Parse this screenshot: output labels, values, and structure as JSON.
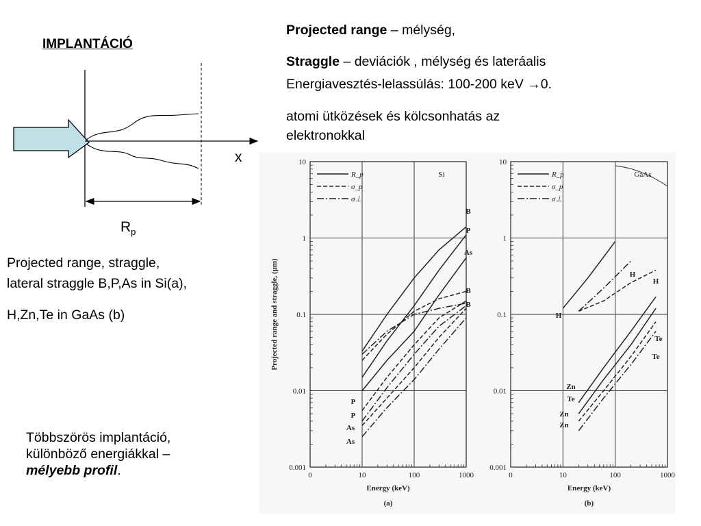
{
  "title": "IMPLANTÁCIÓ",
  "diagram": {
    "x_label": "x",
    "rp_label": "R",
    "rp_sub": "p"
  },
  "right_text": {
    "line1_bold": "Projected range",
    "line1_rest": " – mélység,",
    "line2_bold": "Straggle",
    "line2_rest": " – deviációk , mélység és lateráalis",
    "line3": "Energiavesztés-lelassúlás: 100-200 keV →0.",
    "line4a": "atomi ütközések és kölcsonhatás az",
    "line4b": "elektronokkal"
  },
  "left_text": {
    "line1": "Projected range, straggle,",
    "line2": "lateral straggle B,P,As in Si(a),",
    "line3": "H,Zn,Te in GaAs (b)"
  },
  "multi_text": {
    "line1": "Többszörös implantáció,",
    "line2": "különböző energiákkal –",
    "emph": "mélyebb profil",
    "end": "."
  },
  "chart_data": [
    {
      "type": "line",
      "panel_label": "(a)",
      "material": "Si",
      "xlabel": "Energy (keV)",
      "ylabel": "Projected range and straggle, (μm)",
      "x_scale": "log",
      "y_scale": "log",
      "xlim": [
        1,
        1000
      ],
      "ylim": [
        0.001,
        10
      ],
      "x_ticks": [
        "0",
        "10",
        "100",
        "1000"
      ],
      "y_ticks": [
        "0.001",
        "0.01",
        "0.1",
        "1",
        "10"
      ],
      "legend": [
        "R_p",
        "σ_p",
        "σ⊥"
      ],
      "legend_position": "top-left",
      "grid": true,
      "series": [
        {
          "name": "B",
          "kind": "Rp",
          "x": [
            10,
            30,
            100,
            300,
            1000
          ],
          "y": [
            0.033,
            0.1,
            0.3,
            0.7,
            1.4
          ]
        },
        {
          "name": "P",
          "kind": "Rp",
          "x": [
            10,
            30,
            100,
            300,
            1000
          ],
          "y": [
            0.015,
            0.045,
            0.13,
            0.38,
            1.1
          ]
        },
        {
          "name": "As",
          "kind": "Rp",
          "x": [
            10,
            30,
            100,
            300,
            1000
          ],
          "y": [
            0.01,
            0.025,
            0.06,
            0.18,
            0.55
          ]
        },
        {
          "name": "B",
          "kind": "σp",
          "x": [
            10,
            30,
            100,
            300,
            1000
          ],
          "y": [
            0.025,
            0.055,
            0.11,
            0.16,
            0.2
          ]
        },
        {
          "name": "B",
          "kind": "σ⊥",
          "x": [
            10,
            30,
            100,
            300,
            1000
          ],
          "y": [
            0.03,
            0.06,
            0.1,
            0.12,
            0.14
          ]
        },
        {
          "name": "P",
          "kind": "σp",
          "x": [
            10,
            30,
            100,
            300,
            1000
          ],
          "y": [
            0.0055,
            0.015,
            0.04,
            0.09,
            0.15
          ]
        },
        {
          "name": "P",
          "kind": "σ⊥",
          "x": [
            10,
            30,
            100,
            300,
            1000
          ],
          "y": [
            0.004,
            0.011,
            0.03,
            0.07,
            0.13
          ]
        },
        {
          "name": "As",
          "kind": "σp",
          "x": [
            10,
            30,
            100,
            300,
            1000
          ],
          "y": [
            0.0035,
            0.008,
            0.02,
            0.05,
            0.12
          ]
        },
        {
          "name": "As",
          "kind": "σ⊥",
          "x": [
            10,
            30,
            100,
            300,
            1000
          ],
          "y": [
            0.0025,
            0.006,
            0.014,
            0.035,
            0.09
          ]
        }
      ],
      "annotations": [
        "B",
        "P",
        "As",
        "B",
        "B",
        "P",
        "P",
        "As",
        "As"
      ]
    },
    {
      "type": "line",
      "panel_label": "(b)",
      "material": "GaAs",
      "xlabel": "Energy (keV)",
      "x_scale": "log",
      "y_scale": "log",
      "xlim": [
        1,
        1000
      ],
      "ylim": [
        0.001,
        10
      ],
      "x_ticks": [
        "0",
        "10",
        "100",
        "1000"
      ],
      "y_ticks": [
        "0.001",
        "0.01",
        "0.1",
        "1",
        "10"
      ],
      "legend": [
        "R_p",
        "σ_p",
        "σ⊥"
      ],
      "legend_position": "top-left",
      "grid": true,
      "series": [
        {
          "name": "H",
          "kind": "Rp",
          "x": [
            10,
            30,
            100
          ],
          "y": [
            0.12,
            0.3,
            0.9
          ]
        },
        {
          "name": "H",
          "kind": "σ⊥",
          "x": [
            20,
            60,
            200
          ],
          "y": [
            0.11,
            0.22,
            0.5
          ]
        },
        {
          "name": "H",
          "kind": "σp",
          "x": [
            20,
            60,
            200,
            600
          ],
          "y": [
            0.11,
            0.15,
            0.26,
            0.38
          ]
        },
        {
          "name": "Zn",
          "kind": "Rp",
          "x": [
            20,
            60,
            200,
            600
          ],
          "y": [
            0.007,
            0.02,
            0.06,
            0.17
          ]
        },
        {
          "name": "Te",
          "kind": "Rp",
          "x": [
            20,
            60,
            200,
            600
          ],
          "y": [
            0.005,
            0.014,
            0.04,
            0.12
          ]
        },
        {
          "name": "Zn",
          "kind": "σp",
          "x": [
            20,
            60,
            200,
            600
          ],
          "y": [
            0.004,
            0.01,
            0.028,
            0.08
          ]
        },
        {
          "name": "Zn",
          "kind": "σ⊥",
          "x": [
            20,
            60,
            200,
            600
          ],
          "y": [
            0.003,
            0.008,
            0.022,
            0.06
          ]
        }
      ],
      "annotations": [
        "H",
        "H",
        "H",
        "Te",
        "Te",
        "Zn",
        "Te",
        "Zn",
        "Zn"
      ]
    }
  ]
}
